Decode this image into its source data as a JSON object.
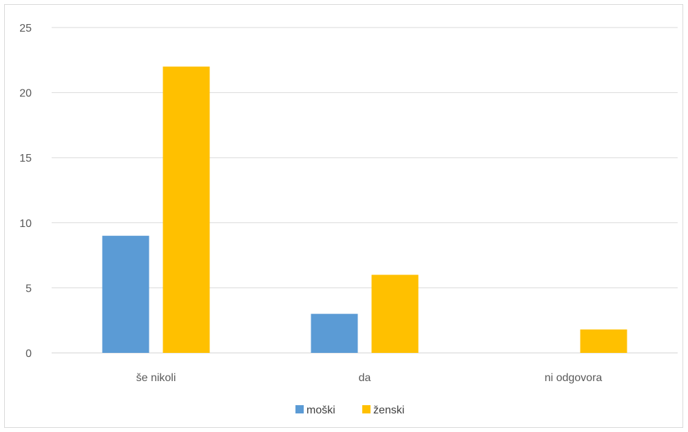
{
  "chart_data": {
    "type": "bar",
    "categories": [
      "še nikoli",
      "da",
      "ni odgovora"
    ],
    "series": [
      {
        "name": "moški",
        "values": [
          9,
          3,
          0
        ],
        "color": "#5B9BD5"
      },
      {
        "name": "ženski",
        "values": [
          22,
          6,
          1.8
        ],
        "color": "#FFC000"
      }
    ],
    "ylim": [
      0,
      25
    ],
    "yticks": [
      "0",
      "5",
      "10",
      "15",
      "20",
      "25"
    ],
    "grid": true,
    "legend_position": "bottom"
  }
}
